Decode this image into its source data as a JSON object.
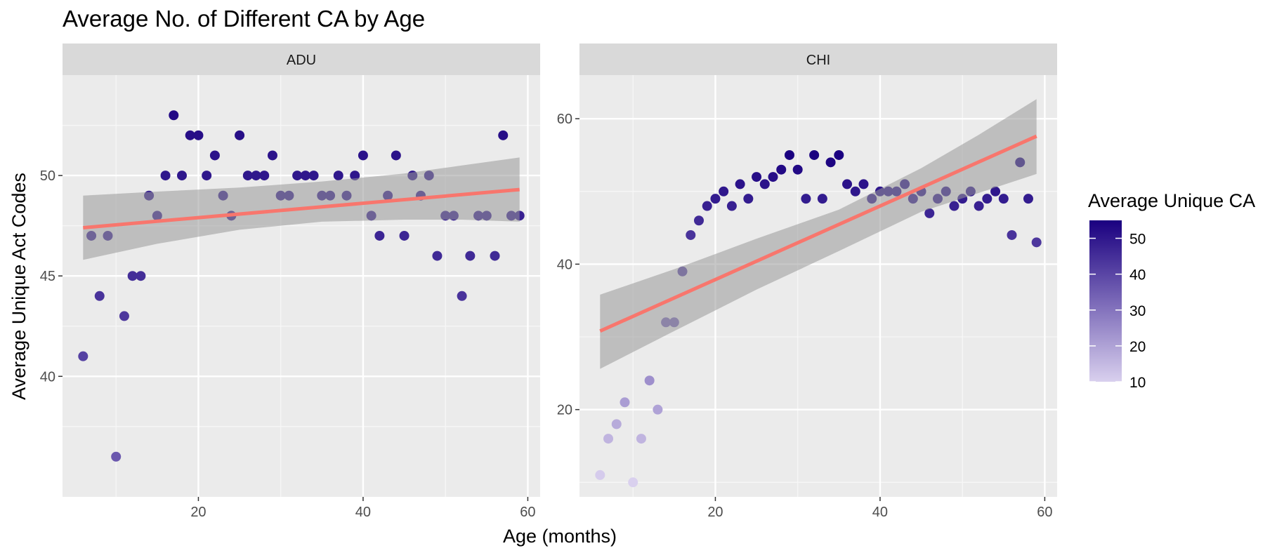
{
  "chart_data": {
    "type": "scatter",
    "title": "Average No. of Different CA by Age",
    "xlabel": "Age (months)",
    "ylabel": "Average Unique Act Codes",
    "legend": {
      "title": "Average Unique CA",
      "placement": "right",
      "breaks": [
        10,
        20,
        30,
        40,
        50
      ],
      "range": [
        10,
        55
      ],
      "low_color": "#D9D0EE",
      "high_color": "#1A0080"
    },
    "fit_color": "#F8766D",
    "band_color": "#999999",
    "panels": [
      {
        "label": "ADU",
        "xlim": [
          3.5,
          61.5
        ],
        "ylim": [
          34,
          55
        ],
        "xticks": [
          20,
          40,
          60
        ],
        "yticks": [
          40,
          45,
          50
        ],
        "fit": [
          [
            6,
            47.4
          ],
          [
            59,
            49.3
          ]
        ],
        "band_upper": [
          [
            6,
            49.0
          ],
          [
            15,
            49.2
          ],
          [
            25,
            49.4
          ],
          [
            35,
            49.7
          ],
          [
            45,
            50.1
          ],
          [
            52,
            50.5
          ],
          [
            59,
            50.9
          ]
        ],
        "band_lower": [
          [
            6,
            45.8
          ],
          [
            15,
            46.6
          ],
          [
            25,
            47.3
          ],
          [
            35,
            47.7
          ],
          [
            45,
            47.8
          ],
          [
            52,
            47.8
          ],
          [
            59,
            47.7
          ]
        ],
        "points": [
          [
            6,
            41
          ],
          [
            7,
            47
          ],
          [
            8,
            44
          ],
          [
            9,
            47
          ],
          [
            10,
            36
          ],
          [
            11,
            43
          ],
          [
            12,
            45
          ],
          [
            13,
            45
          ],
          [
            14,
            49
          ],
          [
            15,
            48
          ],
          [
            16,
            50
          ],
          [
            17,
            53
          ],
          [
            18,
            50
          ],
          [
            19,
            52
          ],
          [
            20,
            52
          ],
          [
            21,
            50
          ],
          [
            22,
            51
          ],
          [
            23,
            49
          ],
          [
            24,
            48
          ],
          [
            25,
            52
          ],
          [
            26,
            50
          ],
          [
            27,
            50
          ],
          [
            28,
            50
          ],
          [
            29,
            51
          ],
          [
            30,
            49
          ],
          [
            31,
            49
          ],
          [
            32,
            50
          ],
          [
            33,
            50
          ],
          [
            34,
            50
          ],
          [
            35,
            49
          ],
          [
            36,
            49
          ],
          [
            37,
            50
          ],
          [
            38,
            49
          ],
          [
            39,
            50
          ],
          [
            40,
            51
          ],
          [
            41,
            48
          ],
          [
            42,
            47
          ],
          [
            43,
            49
          ],
          [
            44,
            51
          ],
          [
            45,
            47
          ],
          [
            46,
            50
          ],
          [
            47,
            49
          ],
          [
            48,
            50
          ],
          [
            49,
            46
          ],
          [
            50,
            48
          ],
          [
            51,
            48
          ],
          [
            52,
            44
          ],
          [
            53,
            46
          ],
          [
            54,
            48
          ],
          [
            55,
            48
          ],
          [
            56,
            46
          ],
          [
            57,
            52
          ],
          [
            58,
            48
          ],
          [
            59,
            48
          ]
        ]
      },
      {
        "label": "CHI",
        "xlim": [
          3.5,
          61.5
        ],
        "ylim": [
          8,
          66
        ],
        "xticks": [
          20,
          40,
          60
        ],
        "yticks": [
          20,
          40,
          60
        ],
        "fit": [
          [
            6,
            30.8
          ],
          [
            59,
            57.6
          ]
        ],
        "band_upper": [
          [
            6,
            35.8
          ],
          [
            15,
            39.3
          ],
          [
            25,
            43.5
          ],
          [
            35,
            47.5
          ],
          [
            45,
            53.2
          ],
          [
            52,
            57.8
          ],
          [
            59,
            62.7
          ]
        ],
        "band_lower": [
          [
            6,
            25.6
          ],
          [
            15,
            30.8
          ],
          [
            25,
            36.5
          ],
          [
            35,
            41.8
          ],
          [
            45,
            47.2
          ],
          [
            52,
            49.8
          ],
          [
            59,
            52.4
          ]
        ],
        "points": [
          [
            6,
            11
          ],
          [
            7,
            16
          ],
          [
            8,
            18
          ],
          [
            9,
            21
          ],
          [
            10,
            10
          ],
          [
            11,
            16
          ],
          [
            12,
            24
          ],
          [
            13,
            20
          ],
          [
            14,
            32
          ],
          [
            15,
            32
          ],
          [
            16,
            39
          ],
          [
            17,
            44
          ],
          [
            18,
            46
          ],
          [
            19,
            48
          ],
          [
            20,
            49
          ],
          [
            21,
            50
          ],
          [
            22,
            48
          ],
          [
            23,
            51
          ],
          [
            24,
            49
          ],
          [
            25,
            52
          ],
          [
            26,
            51
          ],
          [
            27,
            52
          ],
          [
            28,
            53
          ],
          [
            29,
            55
          ],
          [
            30,
            53
          ],
          [
            31,
            49
          ],
          [
            32,
            55
          ],
          [
            33,
            49
          ],
          [
            34,
            54
          ],
          [
            35,
            55
          ],
          [
            36,
            51
          ],
          [
            37,
            50
          ],
          [
            38,
            51
          ],
          [
            39,
            49
          ],
          [
            40,
            50
          ],
          [
            41,
            50
          ],
          [
            42,
            50
          ],
          [
            43,
            51
          ],
          [
            44,
            49
          ],
          [
            45,
            50
          ],
          [
            46,
            47
          ],
          [
            47,
            49
          ],
          [
            48,
            50
          ],
          [
            49,
            48
          ],
          [
            50,
            49
          ],
          [
            51,
            50
          ],
          [
            52,
            48
          ],
          [
            53,
            49
          ],
          [
            54,
            50
          ],
          [
            55,
            49
          ],
          [
            56,
            44
          ],
          [
            57,
            54
          ],
          [
            58,
            49
          ],
          [
            59,
            43
          ]
        ]
      }
    ]
  }
}
